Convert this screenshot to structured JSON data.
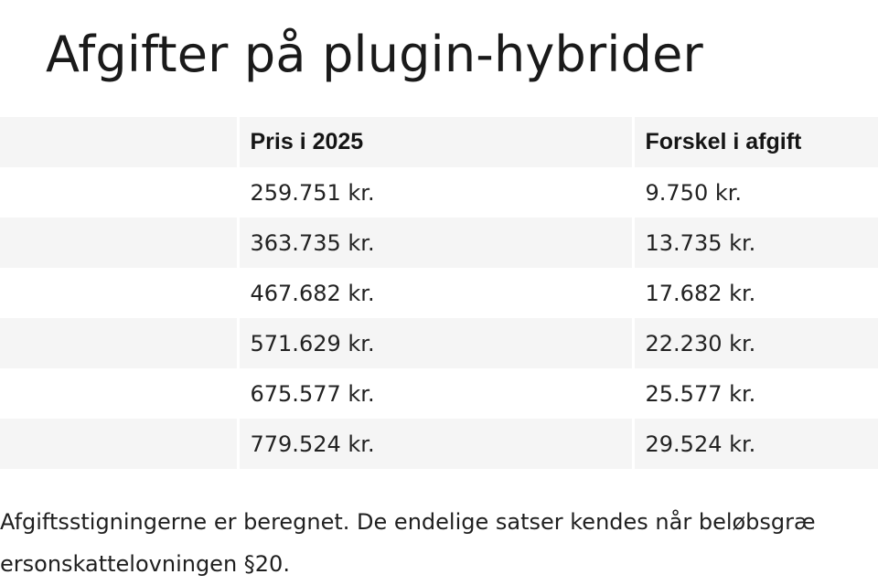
{
  "title": "Afgifter på plugin-hybrider",
  "table": {
    "headers": [
      "",
      "Pris i 2025",
      "Forskel i afgift"
    ],
    "rows": [
      {
        "label": "",
        "price": "259.751 kr.",
        "difference": "9.750 kr."
      },
      {
        "label": "",
        "price": "363.735 kr.",
        "difference": "13.735 kr."
      },
      {
        "label": "",
        "price": "467.682 kr.",
        "difference": "17.682 kr."
      },
      {
        "label": "",
        "price": "571.629 kr.",
        "difference": "22.230 kr."
      },
      {
        "label": "",
        "price": "675.577 kr.",
        "difference": "25.577 kr."
      },
      {
        "label": "",
        "price": "779.524 kr.",
        "difference": "29.524 kr."
      }
    ]
  },
  "footnote": {
    "line1": "Afgiftsstigningerne er beregnet. De endelige satser kendes når beløbsgræ",
    "line2": "ersonskattelovningen §20."
  }
}
